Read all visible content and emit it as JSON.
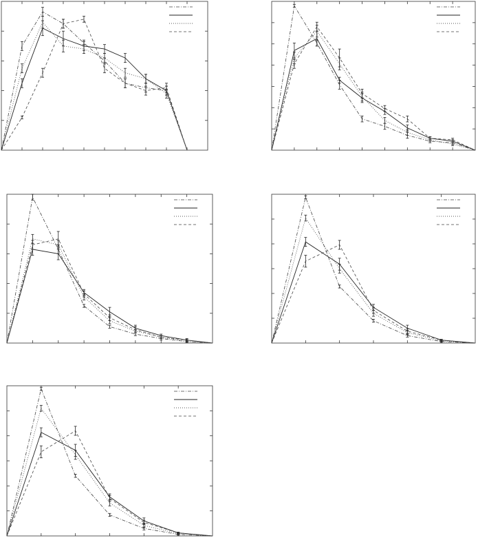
{
  "chart_data": [
    {
      "type": "line",
      "x": [
        0,
        1,
        2,
        3,
        4,
        5,
        6,
        7,
        8,
        9
      ],
      "x_range": [
        0,
        10
      ],
      "y_range": [
        0,
        1
      ],
      "y_tick_count": 5,
      "series": [
        {
          "style": "dash-dot",
          "values": [
            0,
            0.7,
            0.93,
            0.85,
            0.72,
            0.6,
            0.45,
            0.42,
            0.4,
            0
          ],
          "errors": [
            0,
            0.03,
            0.03,
            0.03,
            0.02,
            0.02,
            0.03,
            0.03,
            0.03,
            0
          ]
        },
        {
          "style": "solid",
          "values": [
            0,
            0.45,
            0.82,
            0.75,
            0.7,
            0.68,
            0.62,
            0.48,
            0.4,
            0
          ],
          "errors": [
            0,
            0.03,
            0.05,
            0.05,
            0.03,
            0.03,
            0.03,
            0.03,
            0.03,
            0
          ]
        },
        {
          "style": "dotted",
          "values": [
            0,
            0.55,
            0.86,
            0.7,
            0.68,
            0.62,
            0.52,
            0.48,
            0.38,
            0
          ],
          "errors": [
            0,
            0.03,
            0.04,
            0.04,
            0.03,
            0.03,
            0.03,
            0.03,
            0.03,
            0
          ]
        },
        {
          "style": "dashed",
          "values": [
            0,
            0.22,
            0.52,
            0.85,
            0.88,
            0.55,
            0.45,
            0.4,
            0.42,
            0
          ],
          "errors": [
            0,
            0.01,
            0.03,
            0.03,
            0.02,
            0.03,
            0.03,
            0.03,
            0.03,
            0
          ]
        }
      ]
    },
    {
      "type": "line",
      "x": [
        0,
        1,
        2,
        3,
        4,
        5,
        6,
        7,
        8,
        9
      ],
      "x_range": [
        0,
        9
      ],
      "y_range": [
        0,
        1
      ],
      "y_tick_count": 7,
      "series": [
        {
          "style": "dash-dot",
          "values": [
            0,
            0.97,
            0.72,
            0.44,
            0.21,
            0.16,
            0.1,
            0.06,
            0.05,
            0
          ],
          "errors": [
            0,
            0.01,
            0.02,
            0.03,
            0.02,
            0.02,
            0.02,
            0.01,
            0.01,
            0
          ]
        },
        {
          "style": "solid",
          "values": [
            0,
            0.67,
            0.75,
            0.47,
            0.35,
            0.26,
            0.15,
            0.08,
            0.06,
            0
          ],
          "errors": [
            0,
            0.05,
            0.05,
            0.02,
            0.03,
            0.02,
            0.02,
            0.01,
            0.01,
            0
          ]
        },
        {
          "style": "dotted",
          "values": [
            0,
            0.62,
            0.8,
            0.58,
            0.36,
            0.2,
            0.12,
            0.07,
            0.04,
            0
          ],
          "errors": [
            0,
            0.04,
            0.04,
            0.04,
            0.03,
            0.02,
            0.02,
            0.01,
            0.01,
            0
          ]
        },
        {
          "style": "dashed",
          "values": [
            0,
            0.58,
            0.83,
            0.62,
            0.38,
            0.28,
            0.21,
            0.08,
            0.07,
            0
          ],
          "errors": [
            0,
            0.03,
            0.03,
            0.06,
            0.03,
            0.02,
            0.02,
            0.01,
            0.01,
            0
          ]
        }
      ]
    },
    {
      "type": "line",
      "x": [
        0,
        1,
        2,
        3,
        4,
        5,
        6,
        7,
        8
      ],
      "x_range": [
        0,
        8
      ],
      "y_range": [
        0,
        1
      ],
      "y_tick_count": 5,
      "series": [
        {
          "style": "dash-dot",
          "values": [
            0,
            0.98,
            0.63,
            0.25,
            0.11,
            0.06,
            0.03,
            0.01,
            0
          ],
          "errors": [
            0,
            0.02,
            0.03,
            0.01,
            0.01,
            0.01,
            0.01,
            0.005,
            0
          ]
        },
        {
          "style": "solid",
          "values": [
            0,
            0.63,
            0.6,
            0.34,
            0.21,
            0.1,
            0.05,
            0.02,
            0
          ],
          "errors": [
            0,
            0.04,
            0.04,
            0.02,
            0.03,
            0.02,
            0.01,
            0.01,
            0
          ]
        },
        {
          "style": "dotted",
          "values": [
            0,
            0.7,
            0.66,
            0.31,
            0.15,
            0.08,
            0.04,
            0.01,
            0
          ],
          "errors": [
            0,
            0.03,
            0.03,
            0.02,
            0.02,
            0.01,
            0.01,
            0.005,
            0
          ]
        },
        {
          "style": "dashed",
          "values": [
            0,
            0.66,
            0.7,
            0.33,
            0.17,
            0.09,
            0.04,
            0.02,
            0
          ],
          "errors": [
            0,
            0.03,
            0.05,
            0.02,
            0.02,
            0.02,
            0.01,
            0.005,
            0
          ]
        }
      ]
    },
    {
      "type": "line",
      "x": [
        0,
        1,
        2,
        3,
        4,
        5,
        6
      ],
      "x_range": [
        0,
        6
      ],
      "y_range": [
        0,
        1
      ],
      "y_tick_count": 6,
      "series": [
        {
          "style": "dash-dot",
          "values": [
            0,
            0.98,
            0.38,
            0.15,
            0.05,
            0.01,
            0
          ],
          "errors": [
            0,
            0.01,
            0.01,
            0.01,
            0.01,
            0.005,
            0
          ]
        },
        {
          "style": "solid",
          "values": [
            0,
            0.68,
            0.53,
            0.24,
            0.1,
            0.02,
            0
          ],
          "errors": [
            0,
            0.03,
            0.04,
            0.02,
            0.02,
            0.005,
            0
          ]
        },
        {
          "style": "dotted",
          "values": [
            0,
            0.84,
            0.5,
            0.2,
            0.07,
            0.015,
            0
          ],
          "errors": [
            0,
            0.02,
            0.03,
            0.02,
            0.015,
            0.005,
            0
          ]
        },
        {
          "style": "dashed",
          "values": [
            0,
            0.55,
            0.66,
            0.22,
            0.08,
            0.02,
            0
          ],
          "errors": [
            0,
            0.04,
            0.03,
            0.02,
            0.015,
            0.005,
            0
          ]
        }
      ]
    },
    {
      "type": "line",
      "x": [
        0,
        1,
        2,
        3,
        4,
        5,
        6
      ],
      "x_range": [
        0,
        6
      ],
      "y_range": [
        0,
        1
      ],
      "y_tick_count": 6,
      "series": [
        {
          "style": "dash-dot",
          "values": [
            0,
            0.98,
            0.4,
            0.14,
            0.05,
            0.01,
            0
          ],
          "errors": [
            0,
            0.01,
            0.01,
            0.01,
            0.01,
            0.005,
            0
          ]
        },
        {
          "style": "solid",
          "values": [
            0,
            0.69,
            0.57,
            0.26,
            0.1,
            0.02,
            0
          ],
          "errors": [
            0,
            0.03,
            0.04,
            0.02,
            0.02,
            0.005,
            0
          ]
        },
        {
          "style": "dotted",
          "values": [
            0,
            0.85,
            0.54,
            0.22,
            0.07,
            0.015,
            0
          ],
          "errors": [
            0,
            0.02,
            0.03,
            0.02,
            0.015,
            0.005,
            0
          ]
        },
        {
          "style": "dashed",
          "values": [
            0,
            0.56,
            0.7,
            0.25,
            0.09,
            0.02,
            0
          ],
          "errors": [
            0,
            0.04,
            0.03,
            0.02,
            0.015,
            0.005,
            0
          ]
        }
      ]
    }
  ]
}
